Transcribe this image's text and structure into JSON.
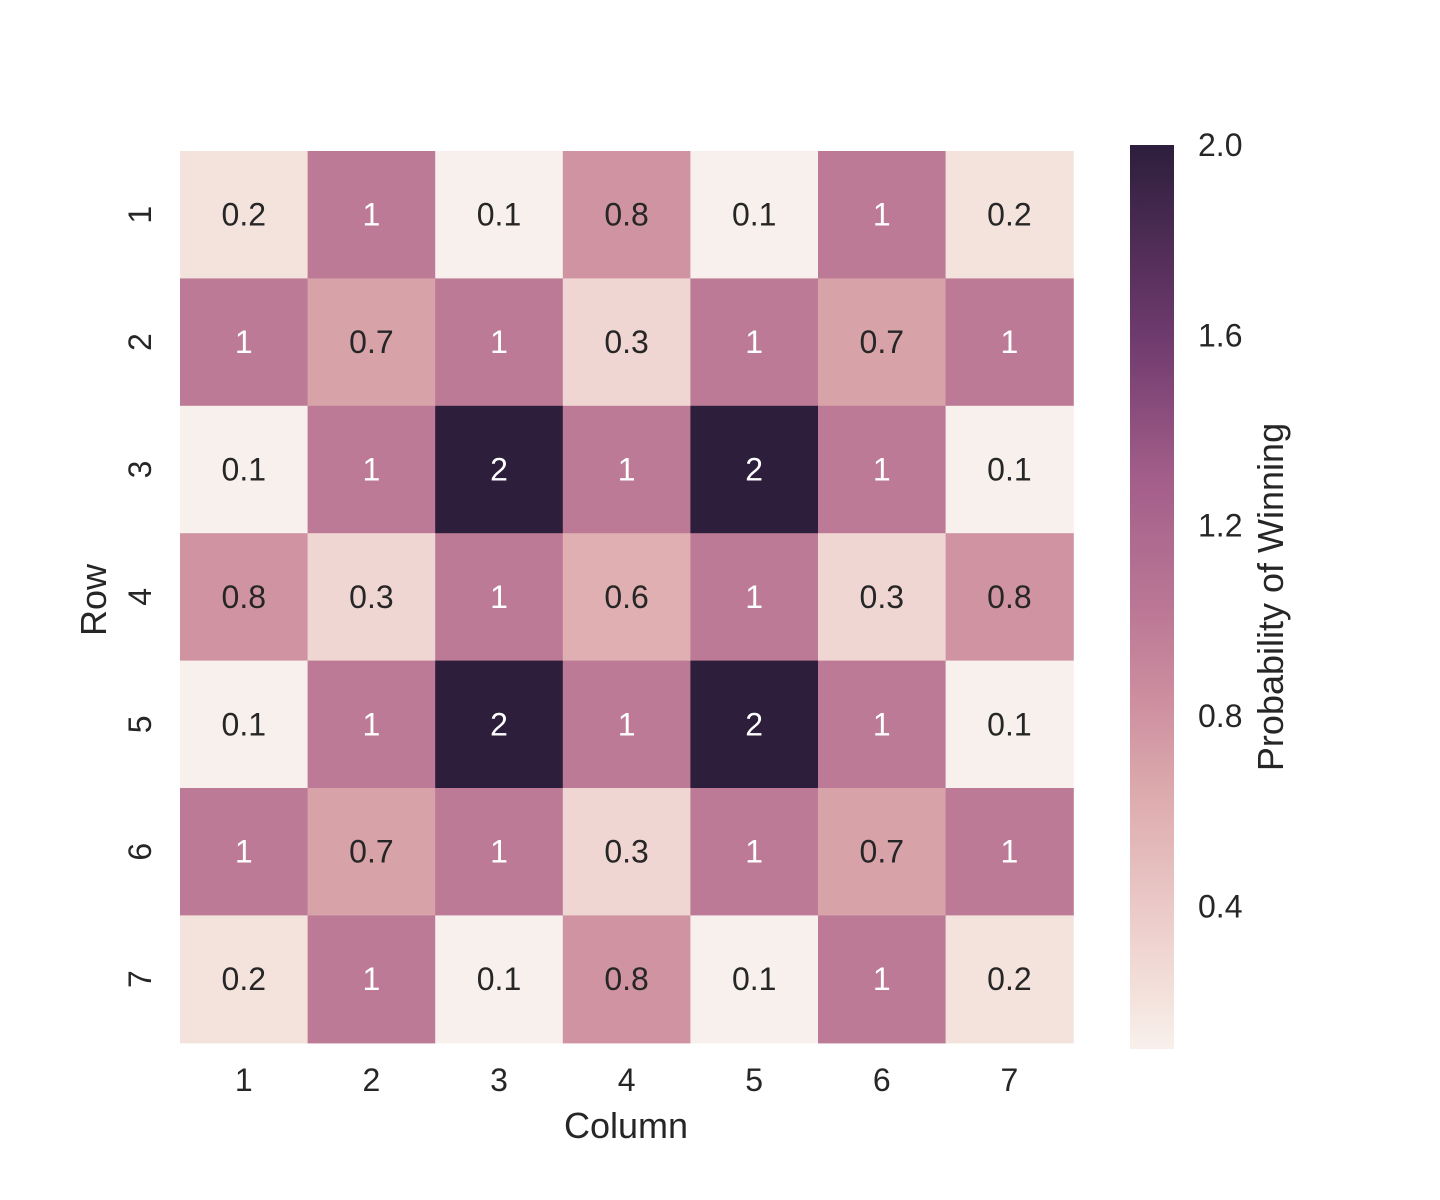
{
  "chart_data": {
    "type": "heatmap",
    "title": "",
    "xlabel": "Column",
    "ylabel": "Row",
    "x_categories": [
      "1",
      "2",
      "3",
      "4",
      "5",
      "6",
      "7"
    ],
    "y_categories": [
      "1",
      "2",
      "3",
      "4",
      "5",
      "6",
      "7"
    ],
    "values": [
      [
        0.2,
        1,
        0.1,
        0.8,
        0.1,
        1,
        0.2
      ],
      [
        1,
        0.7,
        1,
        0.3,
        1,
        0.7,
        1
      ],
      [
        0.1,
        1,
        2,
        1,
        2,
        1,
        0.1
      ],
      [
        0.8,
        0.3,
        1,
        0.6,
        1,
        0.3,
        0.8
      ],
      [
        0.1,
        1,
        2,
        1,
        2,
        1,
        0.1
      ],
      [
        1,
        0.7,
        1,
        0.3,
        1,
        0.7,
        1
      ],
      [
        0.2,
        1,
        0.1,
        0.8,
        0.1,
        1,
        0.2
      ]
    ],
    "annotations": [
      [
        "0.2",
        "1",
        "0.1",
        "0.8",
        "0.1",
        "1",
        "0.2"
      ],
      [
        "1",
        "0.7",
        "1",
        "0.3",
        "1",
        "0.7",
        "1"
      ],
      [
        "0.1",
        "1",
        "2",
        "1",
        "2",
        "1",
        "0.1"
      ],
      [
        "0.8",
        "0.3",
        "1",
        "0.6",
        "1",
        "0.3",
        "0.8"
      ],
      [
        "0.1",
        "1",
        "2",
        "1",
        "2",
        "1",
        "0.1"
      ],
      [
        "1",
        "0.7",
        "1",
        "0.3",
        "1",
        "0.7",
        "1"
      ],
      [
        "0.2",
        "1",
        "0.1",
        "0.8",
        "0.1",
        "1",
        "0.2"
      ]
    ],
    "colorbar": {
      "label": "Probability of Winning",
      "range": [
        0.1,
        2.0
      ],
      "ticks": [
        0.4,
        0.8,
        1.2,
        1.6,
        2.0
      ],
      "tick_labels": [
        "0.4",
        "0.8",
        "1.2",
        "1.6",
        "2.0"
      ],
      "placement": "right"
    },
    "colormap": {
      "stops": [
        {
          "value": 0.1,
          "color": "#f8f0ec"
        },
        {
          "value": 0.2,
          "color": "#f4e3dd"
        },
        {
          "value": 0.3,
          "color": "#f0d6d3"
        },
        {
          "value": 0.6,
          "color": "#dfafb1"
        },
        {
          "value": 0.7,
          "color": "#d7a2a8"
        },
        {
          "value": 0.8,
          "color": "#d093a2"
        },
        {
          "value": 1.0,
          "color": "#bd7a96"
        },
        {
          "value": 1.3,
          "color": "#a35e8a"
        },
        {
          "value": 1.6,
          "color": "#6e3a6d"
        },
        {
          "value": 2.0,
          "color": "#2d1e3c"
        }
      ],
      "light_text": "#ffffff",
      "dark_text": "#262626"
    },
    "grid": false,
    "legend": "none"
  }
}
